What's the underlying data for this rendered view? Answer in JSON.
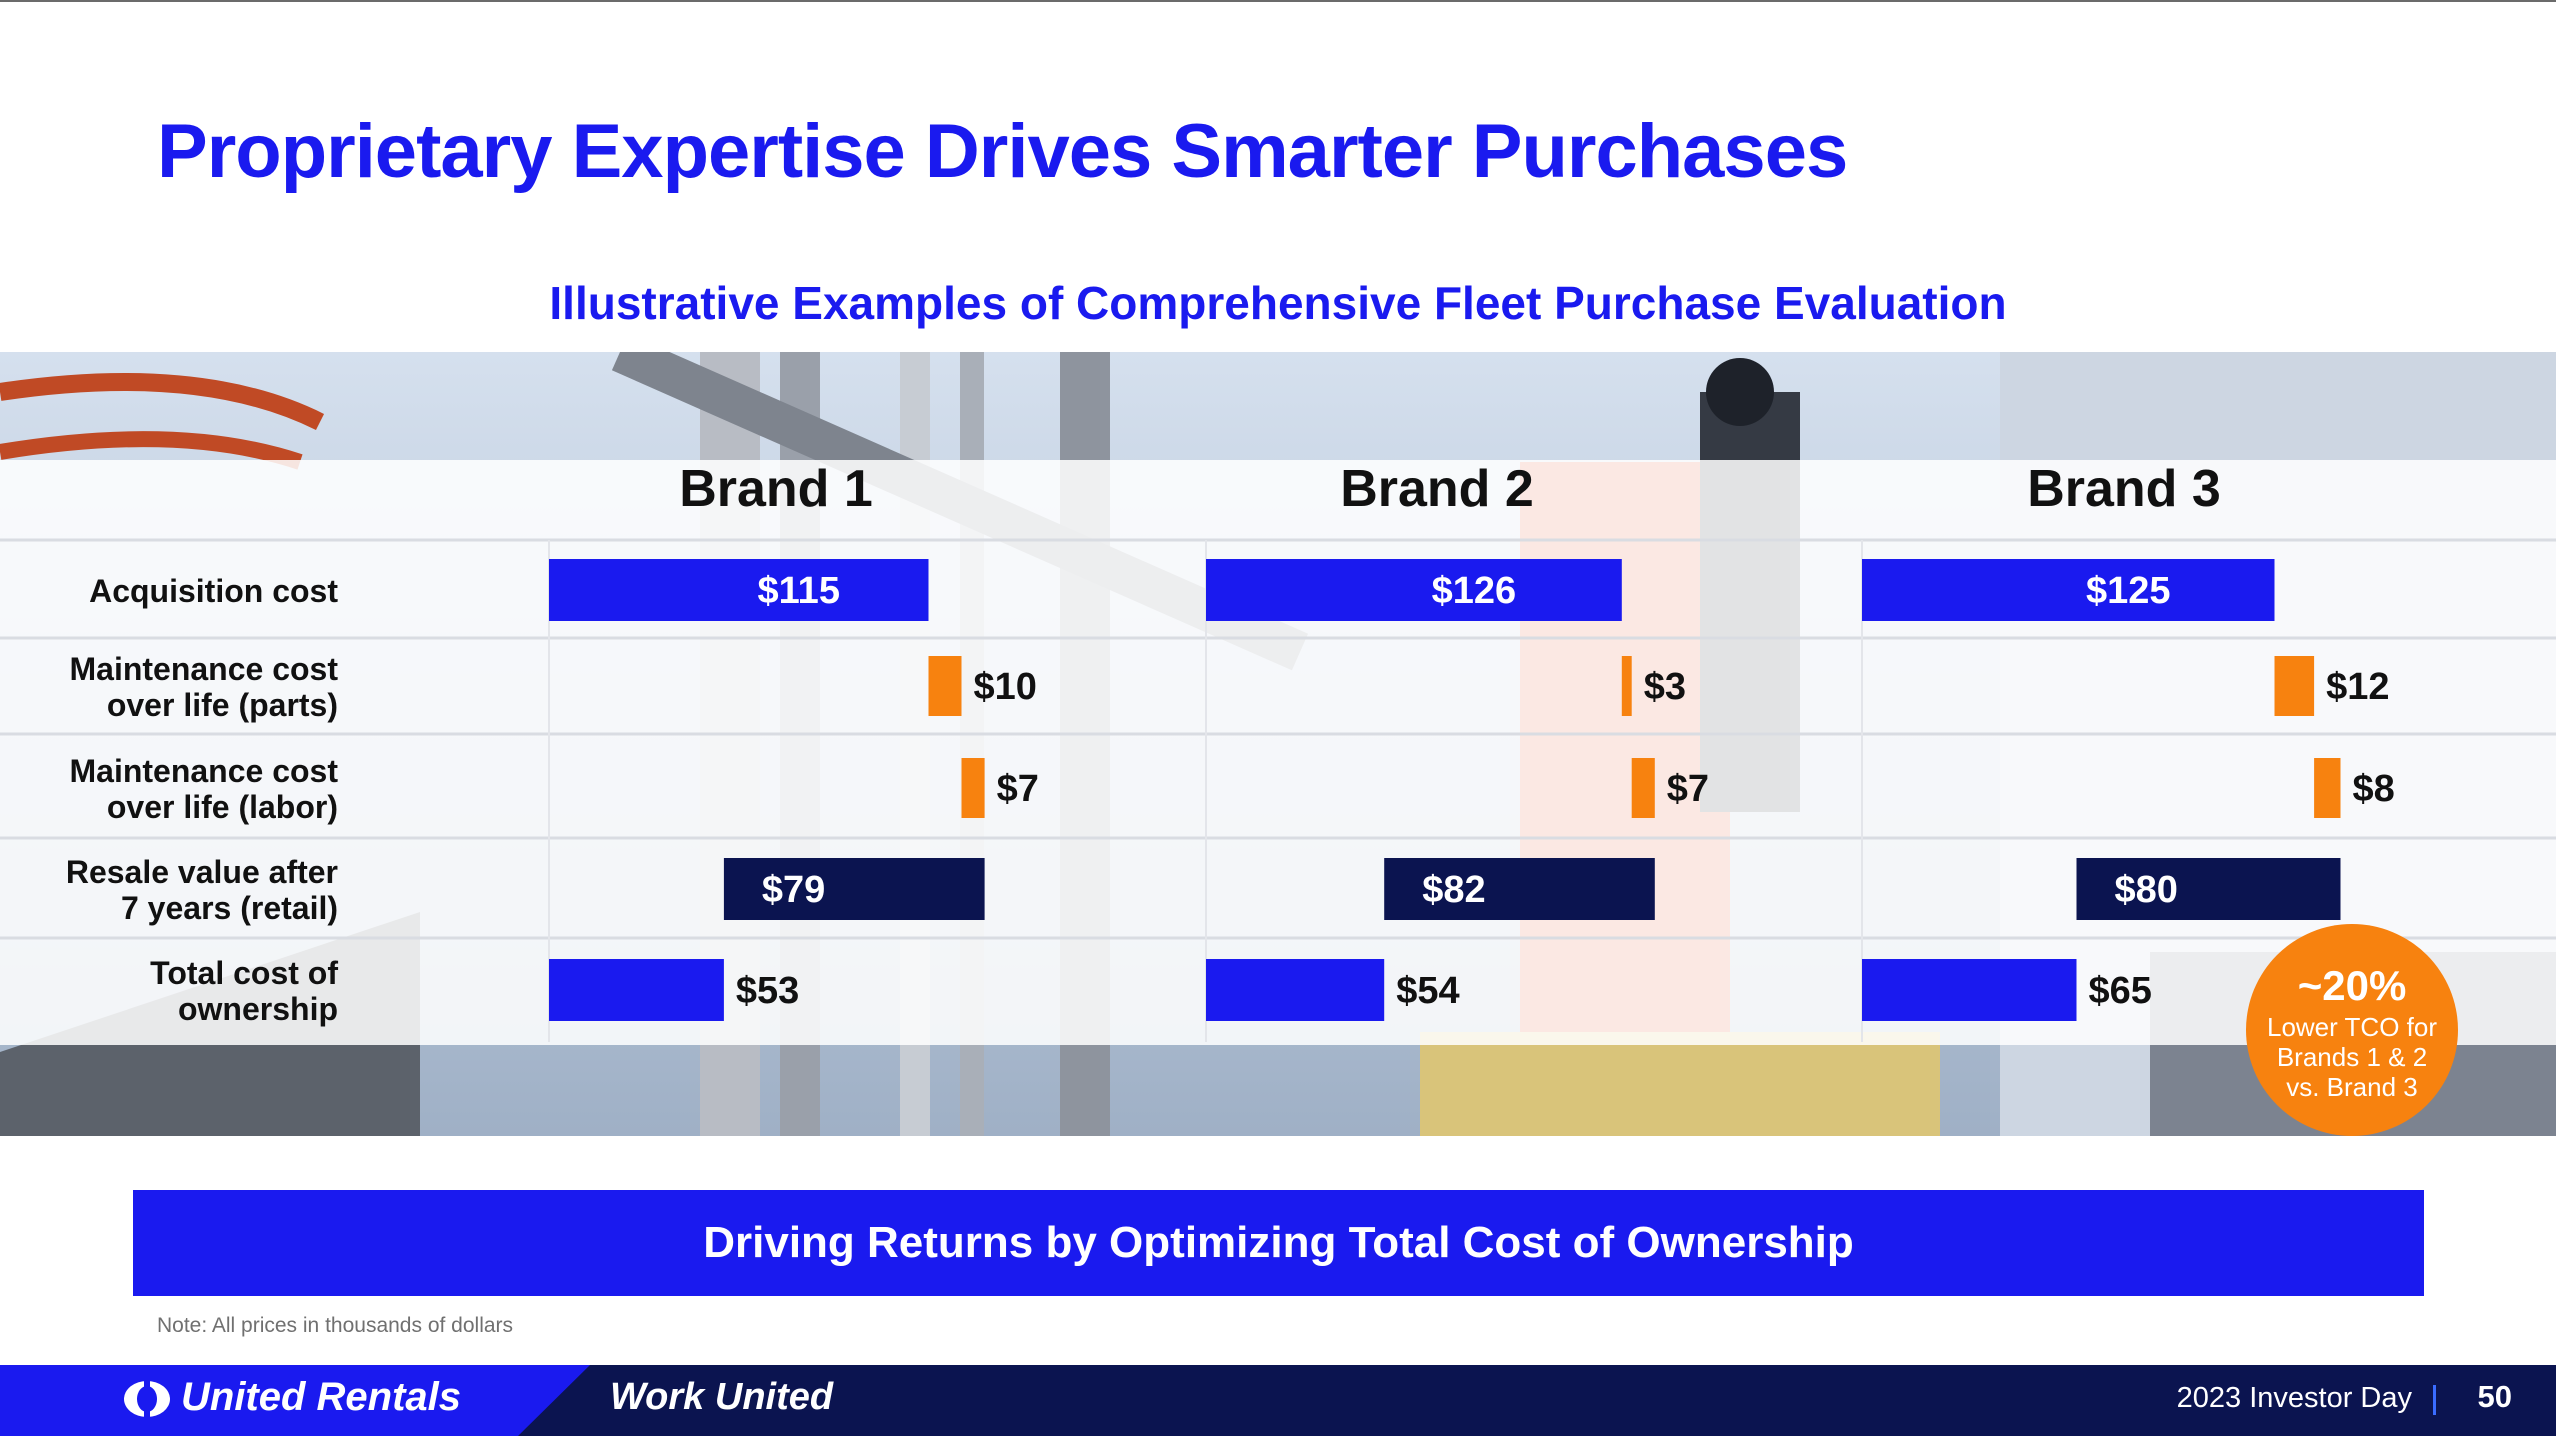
{
  "slide": {
    "title": "Proprietary Expertise Drives Smarter Purchases",
    "subtitle": "Illustrative Examples of Comprehensive Fleet Purchase Evaluation",
    "callout": "Driving Returns by Optimizing Total Cost of Ownership",
    "note": "Note: All prices in thousands of dollars"
  },
  "footer": {
    "brand": "United Rentals",
    "tagline": "Work United",
    "event": "2023 Investor Day",
    "page_number": "50"
  },
  "badge": {
    "headline": "~20%",
    "line1": "Lower TCO for",
    "line2": "Brands 1 & 2",
    "line3": "vs. Brand 3"
  },
  "colors": {
    "accent_blue": "#1a1aef",
    "navy": "#0b1450",
    "orange": "#f7820f"
  },
  "chart_data": {
    "type": "bar",
    "subtype": "waterfall",
    "groups": [
      "Brand 1",
      "Brand 2",
      "Brand 3"
    ],
    "rows": [
      {
        "label_line1": "Acquisition cost",
        "label_line2": ""
      },
      {
        "label_line1": "Maintenance cost",
        "label_line2": "over life (parts)"
      },
      {
        "label_line1": "Maintenance cost",
        "label_line2": "over life (labor)"
      },
      {
        "label_line1": "Resale value after",
        "label_line2": "7 years (retail)"
      },
      {
        "label_line1": "Total cost of",
        "label_line2": "ownership"
      }
    ],
    "series": [
      {
        "name": "Brand 1",
        "values": [
          115,
          10,
          7,
          -79,
          53
        ],
        "labels": [
          "$115",
          "$10",
          "$7",
          "$79",
          "$53"
        ]
      },
      {
        "name": "Brand 2",
        "values": [
          126,
          3,
          7,
          -82,
          54
        ],
        "labels": [
          "$126",
          "$3",
          "$7",
          "$82",
          "$54"
        ]
      },
      {
        "name": "Brand 3",
        "values": [
          125,
          12,
          8,
          -80,
          65
        ],
        "labels": [
          "$125",
          "$12",
          "$8",
          "$80",
          "$65"
        ]
      }
    ],
    "row_colors": [
      "#1a1aef",
      "#f7820f",
      "#f7820f",
      "#0b1450",
      "#1a1aef"
    ],
    "units": "thousands of dollars"
  }
}
